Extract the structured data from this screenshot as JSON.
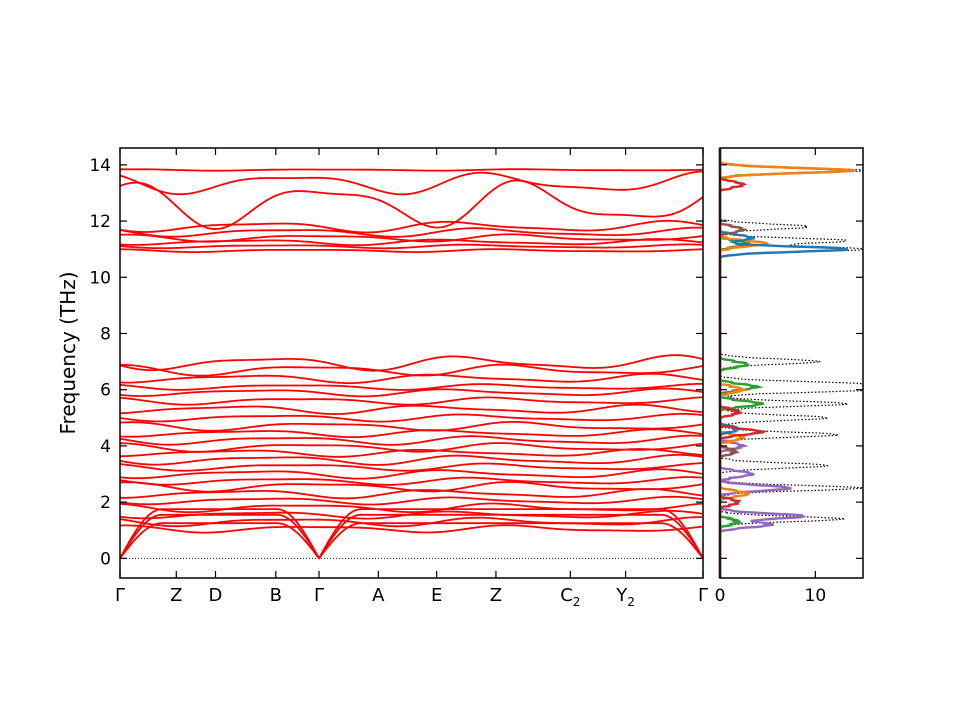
{
  "chart_data": [
    {
      "type": "line",
      "subtype": "phonon-band-structure",
      "ylabel": "Frequency (THz)",
      "xlabel": "",
      "ylim": [
        -0.7,
        14.6
      ],
      "yticks": [
        0,
        2,
        4,
        6,
        8,
        10,
        12,
        14
      ],
      "ytick_labels": [
        "0",
        "2",
        "4",
        "6",
        "8",
        "10",
        "12",
        "14"
      ],
      "kpoints": [
        {
          "label": "Γ",
          "sub": "",
          "x": 0.0
        },
        {
          "label": "Z",
          "sub": "",
          "x": 0.56
        },
        {
          "label": "D",
          "sub": "",
          "x": 0.95
        },
        {
          "label": "B",
          "sub": "",
          "x": 1.55
        },
        {
          "label": "Γ",
          "sub": "",
          "x": 1.98
        },
        {
          "label": "A",
          "sub": "",
          "x": 2.57
        },
        {
          "label": "E",
          "sub": "",
          "x": 3.15
        },
        {
          "label": "Z",
          "sub": "",
          "x": 3.74
        },
        {
          "label": "C",
          "sub": "2",
          "x": 4.48
        },
        {
          "label": "Y",
          "sub": "2",
          "x": 5.03
        },
        {
          "label": "Γ",
          "sub": "",
          "x": 5.8
        }
      ],
      "xlim": [
        0,
        5.8
      ],
      "band_color": "#ff0000",
      "zero_line_color": "#0000ff",
      "grid": false,
      "legend": "none",
      "acoustic": {
        "gamma_x": [
          0.0,
          1.98,
          5.8
        ],
        "zone_max": [
          1.25,
          1.55,
          1.75
        ]
      },
      "bands": [
        {
          "base": 1.05,
          "amp": 0.1,
          "ph": 0.3
        },
        {
          "base": 1.3,
          "amp": 0.12,
          "ph": 1.1
        },
        {
          "base": 1.55,
          "amp": 0.1,
          "ph": 2.0
        },
        {
          "base": 1.8,
          "amp": 0.12,
          "ph": 0.7
        },
        {
          "base": 2.05,
          "amp": 0.1,
          "ph": 1.9
        },
        {
          "base": 2.3,
          "amp": 0.12,
          "ph": 2.6
        },
        {
          "base": 2.55,
          "amp": 0.13,
          "ph": 0.2
        },
        {
          "base": 2.75,
          "amp": 0.1,
          "ph": 1.4
        },
        {
          "base": 3.0,
          "amp": 0.12,
          "ph": 2.2
        },
        {
          "base": 3.25,
          "amp": 0.1,
          "ph": 0.9
        },
        {
          "base": 3.5,
          "amp": 0.13,
          "ph": 1.7
        },
        {
          "base": 3.75,
          "amp": 0.1,
          "ph": 2.8
        },
        {
          "base": 3.95,
          "amp": 0.12,
          "ph": 0.5
        },
        {
          "base": 4.2,
          "amp": 0.12,
          "ph": 1.3
        },
        {
          "base": 4.45,
          "amp": 0.1,
          "ph": 2.4
        },
        {
          "base": 4.7,
          "amp": 0.12,
          "ph": 0.1
        },
        {
          "base": 5.0,
          "amp": 0.1,
          "ph": 1.6
        },
        {
          "base": 5.3,
          "amp": 0.12,
          "ph": 2.9
        },
        {
          "base": 5.6,
          "amp": 0.1,
          "ph": 0.8
        },
        {
          "base": 5.9,
          "amp": 0.1,
          "ph": 2.1
        },
        {
          "base": 6.1,
          "amp": 0.08,
          "ph": 1.0
        },
        {
          "base": 6.4,
          "amp": 0.12,
          "ph": 2.5
        },
        {
          "base": 6.7,
          "amp": 0.15,
          "ph": 0.4
        },
        {
          "base": 6.95,
          "amp": 0.2,
          "ph": 1.8
        },
        {
          "base": 10.95,
          "amp": 0.04,
          "ph": 0.6
        },
        {
          "base": 11.1,
          "amp": 0.05,
          "ph": 1.5
        },
        {
          "base": 11.25,
          "amp": 0.08,
          "ph": 2.3
        },
        {
          "base": 11.4,
          "amp": 0.1,
          "ph": 0.2
        },
        {
          "base": 11.6,
          "amp": 0.12,
          "ph": 1.2
        },
        {
          "base": 11.8,
          "amp": 0.15,
          "ph": 2.0
        },
        {
          "base": 12.6,
          "amp": 0.65,
          "ph": 0.0
        },
        {
          "base": 13.35,
          "amp": 0.3,
          "ph": 1.0
        },
        {
          "base": 13.82,
          "amp": 0.02,
          "ph": 0.0
        }
      ]
    },
    {
      "type": "line",
      "subtype": "phonon-density-of-states",
      "xlim": [
        0,
        15
      ],
      "xticks": [
        0,
        10
      ],
      "xtick_labels": [
        "0",
        "10"
      ],
      "ylim": [
        -0.7,
        14.6
      ],
      "legend": "none",
      "grid": false,
      "series": [
        {
          "color": "#000000",
          "style": "dotted",
          "peaks": [
            [
              1.4,
              12.5
            ],
            [
              2.5,
              14.5
            ],
            [
              3.3,
              11
            ],
            [
              4.4,
              12
            ],
            [
              5.0,
              11
            ],
            [
              5.5,
              13
            ],
            [
              6.0,
              15
            ],
            [
              6.2,
              14
            ],
            [
              7.0,
              10
            ],
            [
              11.0,
              15
            ],
            [
              11.3,
              13
            ],
            [
              11.8,
              9
            ],
            [
              13.8,
              15
            ]
          ]
        },
        {
          "color": "#9467bd",
          "style": "solid",
          "peaks": [
            [
              1.2,
              5
            ],
            [
              1.5,
              8.5
            ],
            [
              2.5,
              7.0
            ],
            [
              3.0,
              3
            ],
            [
              4.0,
              2
            ]
          ]
        },
        {
          "color": "#2ca02c",
          "style": "solid",
          "peaks": [
            [
              1.3,
              1.5
            ],
            [
              6.1,
              3.5
            ],
            [
              5.5,
              4
            ],
            [
              6.9,
              2.5
            ],
            [
              11.2,
              2.5
            ],
            [
              13.8,
              13
            ]
          ]
        },
        {
          "color": "#ff7f0e",
          "style": "solid",
          "peaks": [
            [
              2.3,
              2.5
            ],
            [
              4.3,
              2
            ],
            [
              6.0,
              2
            ],
            [
              11.2,
              4.5
            ],
            [
              13.8,
              13.5
            ]
          ]
        },
        {
          "color": "#1f77b4",
          "style": "solid",
          "peaks": [
            [
              4.6,
              1.5
            ],
            [
              11.0,
              13
            ],
            [
              11.4,
              3
            ]
          ]
        },
        {
          "color": "#d62728",
          "style": "solid",
          "peaks": [
            [
              2.0,
              1.5
            ],
            [
              4.5,
              4
            ],
            [
              5.2,
              1.5
            ],
            [
              13.3,
              2
            ]
          ]
        },
        {
          "color": "#8c564b",
          "style": "solid",
          "peaks": [
            [
              3.8,
              1.2
            ],
            [
              11.7,
              2
            ]
          ]
        }
      ]
    }
  ]
}
